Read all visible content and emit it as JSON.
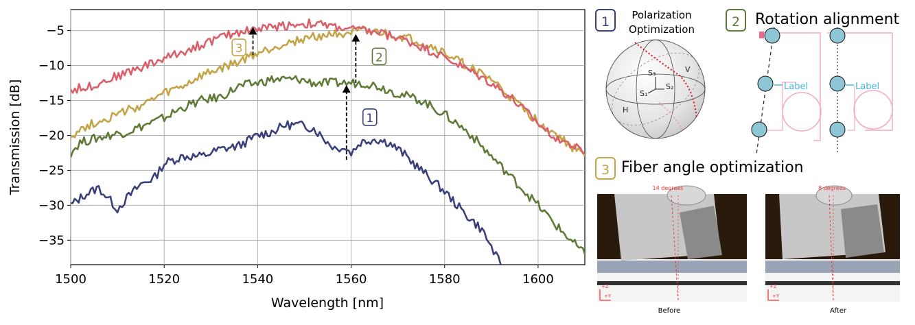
{
  "chart_data": {
    "type": "line",
    "xlabel": "Wavelength [nm]",
    "ylabel": "Transmission [dB]",
    "xlim": [
      1500,
      1610
    ],
    "ylim": [
      -38.5,
      -2
    ],
    "xticks": [
      1500,
      1520,
      1540,
      1560,
      1580,
      1600
    ],
    "yticks": [
      -5,
      -10,
      -15,
      -20,
      -25,
      -30,
      -35
    ],
    "grid": true,
    "series": [
      {
        "color": "#3b3f7a",
        "points": [
          [
            1500,
            -30
          ],
          [
            1503,
            -28.5
          ],
          [
            1506,
            -27.5
          ],
          [
            1508,
            -29
          ],
          [
            1510,
            -30.5
          ],
          [
            1512,
            -29
          ],
          [
            1515,
            -27
          ],
          [
            1518,
            -26
          ],
          [
            1520,
            -24
          ],
          [
            1524,
            -23
          ],
          [
            1528,
            -23
          ],
          [
            1532,
            -22
          ],
          [
            1536,
            -21.5
          ],
          [
            1540,
            -20
          ],
          [
            1543,
            -19.5
          ],
          [
            1546,
            -18.5
          ],
          [
            1549,
            -18.5
          ],
          [
            1552,
            -19
          ],
          [
            1555,
            -21
          ],
          [
            1557,
            -22
          ],
          [
            1558,
            -21.5
          ],
          [
            1560,
            -22.5
          ],
          [
            1562,
            -21
          ],
          [
            1565,
            -20.5
          ],
          [
            1568,
            -21
          ],
          [
            1571,
            -22.5
          ],
          [
            1575,
            -25
          ],
          [
            1580,
            -28
          ],
          [
            1584,
            -31
          ],
          [
            1588,
            -33.5
          ],
          [
            1590,
            -36
          ],
          [
            1592,
            -38.5
          ]
        ]
      },
      {
        "color": "#5f7a37",
        "points": [
          [
            1500,
            -22.5
          ],
          [
            1502,
            -21
          ],
          [
            1505,
            -20.5
          ],
          [
            1508,
            -20
          ],
          [
            1512,
            -19.5
          ],
          [
            1516,
            -18.5
          ],
          [
            1520,
            -17.5
          ],
          [
            1524,
            -16
          ],
          [
            1528,
            -15
          ],
          [
            1532,
            -14.5
          ],
          [
            1536,
            -13
          ],
          [
            1540,
            -12.5
          ],
          [
            1543,
            -12
          ],
          [
            1546,
            -12
          ],
          [
            1549,
            -12
          ],
          [
            1552,
            -12.5
          ],
          [
            1555,
            -12.5
          ],
          [
            1558,
            -12.5
          ],
          [
            1560,
            -12.5
          ],
          [
            1563,
            -12.5
          ],
          [
            1566,
            -13
          ],
          [
            1570,
            -14
          ],
          [
            1575,
            -15
          ],
          [
            1580,
            -17
          ],
          [
            1585,
            -19.5
          ],
          [
            1590,
            -23
          ],
          [
            1595,
            -26.5
          ],
          [
            1600,
            -30
          ],
          [
            1604,
            -33
          ],
          [
            1607,
            -35
          ],
          [
            1610,
            -37
          ]
        ]
      },
      {
        "color": "#c5a448",
        "points": [
          [
            1500,
            -20
          ],
          [
            1504,
            -18.5
          ],
          [
            1508,
            -17.5
          ],
          [
            1512,
            -16.5
          ],
          [
            1516,
            -15.5
          ],
          [
            1520,
            -14
          ],
          [
            1524,
            -13
          ],
          [
            1528,
            -11.5
          ],
          [
            1532,
            -10.5
          ],
          [
            1536,
            -9.5
          ],
          [
            1539,
            -8.5
          ],
          [
            1542,
            -7.8
          ],
          [
            1545,
            -7
          ],
          [
            1548,
            -6.5
          ],
          [
            1551,
            -6
          ],
          [
            1554,
            -5.7
          ],
          [
            1557,
            -5.4
          ],
          [
            1560,
            -5.3
          ],
          [
            1563,
            -5.2
          ],
          [
            1566,
            -5.3
          ],
          [
            1570,
            -5.8
          ],
          [
            1574,
            -6.5
          ],
          [
            1578,
            -7.5
          ],
          [
            1582,
            -9
          ],
          [
            1586,
            -10.5
          ],
          [
            1590,
            -12
          ],
          [
            1594,
            -14.5
          ],
          [
            1598,
            -17
          ],
          [
            1602,
            -19
          ],
          [
            1606,
            -21
          ],
          [
            1610,
            -23
          ]
        ]
      },
      {
        "color": "#d9606b",
        "points": [
          [
            1500,
            -13.5
          ],
          [
            1504,
            -13
          ],
          [
            1508,
            -12
          ],
          [
            1512,
            -11
          ],
          [
            1516,
            -10
          ],
          [
            1520,
            -9
          ],
          [
            1524,
            -8
          ],
          [
            1528,
            -7
          ],
          [
            1532,
            -6
          ],
          [
            1536,
            -5.2
          ],
          [
            1539,
            -4.8
          ],
          [
            1542,
            -4.6
          ],
          [
            1545,
            -4.3
          ],
          [
            1548,
            -4.1
          ],
          [
            1551,
            -4
          ],
          [
            1554,
            -4.2
          ],
          [
            1557,
            -4.5
          ],
          [
            1560,
            -4.8
          ],
          [
            1563,
            -5
          ],
          [
            1566,
            -5.3
          ],
          [
            1570,
            -6
          ],
          [
            1574,
            -7
          ],
          [
            1578,
            -8.2
          ],
          [
            1582,
            -9.5
          ],
          [
            1586,
            -11
          ],
          [
            1590,
            -12.5
          ],
          [
            1594,
            -14.5
          ],
          [
            1598,
            -17
          ],
          [
            1602,
            -19.5
          ],
          [
            1606,
            -21
          ],
          [
            1610,
            -22.5
          ]
        ]
      }
    ],
    "annotations": [
      {
        "label": "1",
        "color": "#3b3f7a",
        "x": 1559,
        "y_from": -23.5,
        "y_to": -12.8,
        "label_x": 1564,
        "label_y": -17.5
      },
      {
        "label": "2",
        "color": "#5f7a37",
        "x": 1561,
        "y_from": -12.5,
        "y_to": -5.5,
        "label_x": 1566,
        "label_y": -8.8
      },
      {
        "label": "3",
        "color": "#c5a448",
        "x": 1539,
        "y_from": -8.5,
        "y_to": -4.5,
        "label_x": 1536,
        "label_y": -7.5
      }
    ]
  },
  "panels": {
    "p1": {
      "num": "1",
      "title_line1": "Polarization",
      "title_line2": "Optimization",
      "sphere_labels": {
        "s3": "S₃",
        "s1": "S₁",
        "s2": "S₂",
        "v": "V",
        "h": "H"
      }
    },
    "p2": {
      "num": "2",
      "title": "Rotation alignment",
      "label_text": "Label"
    },
    "p3": {
      "num": "3",
      "title": "Fiber angle optimization",
      "before_caption": "Before",
      "after_caption": "After",
      "before_angle": "14 degrees",
      "after_angle": "8 degrees",
      "axis_z": "+Z",
      "axis_y": "+Y"
    }
  },
  "colors": {
    "blue": "#3b3f7a",
    "green": "#5f7a37",
    "gold": "#c5a448",
    "red": "#d9606b",
    "cyan": "#49b6e0",
    "pink": "#f2a9c6"
  }
}
